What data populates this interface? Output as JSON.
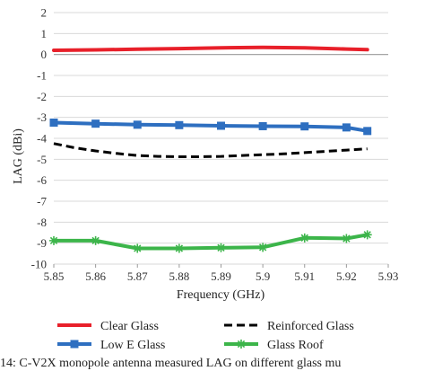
{
  "chart_data": {
    "type": "line",
    "title": "",
    "xlabel": "Frequency (GHz)",
    "ylabel": "LAG (dBi)",
    "xlim": [
      5.85,
      5.93
    ],
    "ylim": [
      -10,
      2
    ],
    "xticks": [
      "5.85",
      "5.86",
      "5.87",
      "5.88",
      "5.89",
      "5.9",
      "5.91",
      "5.92",
      "5.93"
    ],
    "yticks": [
      "2",
      "1",
      "0",
      "-1",
      "-2",
      "-3",
      "-4",
      "-5",
      "-6",
      "-7",
      "-8",
      "-9",
      "-10"
    ],
    "grid": "horizontal",
    "legend_position": "bottom",
    "series": [
      {
        "name": "Clear Glass",
        "color": "#e8202a",
        "style": "solid",
        "marker": "none",
        "x": [
          5.85,
          5.86,
          5.87,
          5.88,
          5.89,
          5.9,
          5.91,
          5.92,
          5.925
        ],
        "y": [
          0.2,
          0.22,
          0.25,
          0.28,
          0.32,
          0.34,
          0.32,
          0.26,
          0.23
        ]
      },
      {
        "name": "Reinforced Glass",
        "color": "#000000",
        "style": "dashed",
        "marker": "none",
        "x": [
          5.85,
          5.855,
          5.86,
          5.865,
          5.87,
          5.875,
          5.88,
          5.885,
          5.89,
          5.895,
          5.9,
          5.905,
          5.91,
          5.915,
          5.92,
          5.925
        ],
        "y": [
          -4.25,
          -4.45,
          -4.6,
          -4.72,
          -4.82,
          -4.86,
          -4.88,
          -4.88,
          -4.86,
          -4.82,
          -4.78,
          -4.74,
          -4.68,
          -4.62,
          -4.56,
          -4.5
        ]
      },
      {
        "name": "Low E Glass",
        "color": "#2e6fc0",
        "style": "solid",
        "marker": "square",
        "x": [
          5.85,
          5.86,
          5.87,
          5.88,
          5.89,
          5.9,
          5.91,
          5.92,
          5.925
        ],
        "y": [
          -3.25,
          -3.3,
          -3.35,
          -3.37,
          -3.4,
          -3.42,
          -3.43,
          -3.48,
          -3.65
        ]
      },
      {
        "name": "Glass Roof",
        "color": "#3cb54a",
        "style": "solid",
        "marker": "star",
        "x": [
          5.85,
          5.86,
          5.87,
          5.88,
          5.89,
          5.9,
          5.91,
          5.92,
          5.925
        ],
        "y": [
          -8.88,
          -8.88,
          -9.25,
          -9.25,
          -9.22,
          -9.2,
          -8.75,
          -8.78,
          -8.6
        ]
      }
    ]
  },
  "caption": "14: C-V2X monopole antenna measured LAG on different glass mu"
}
